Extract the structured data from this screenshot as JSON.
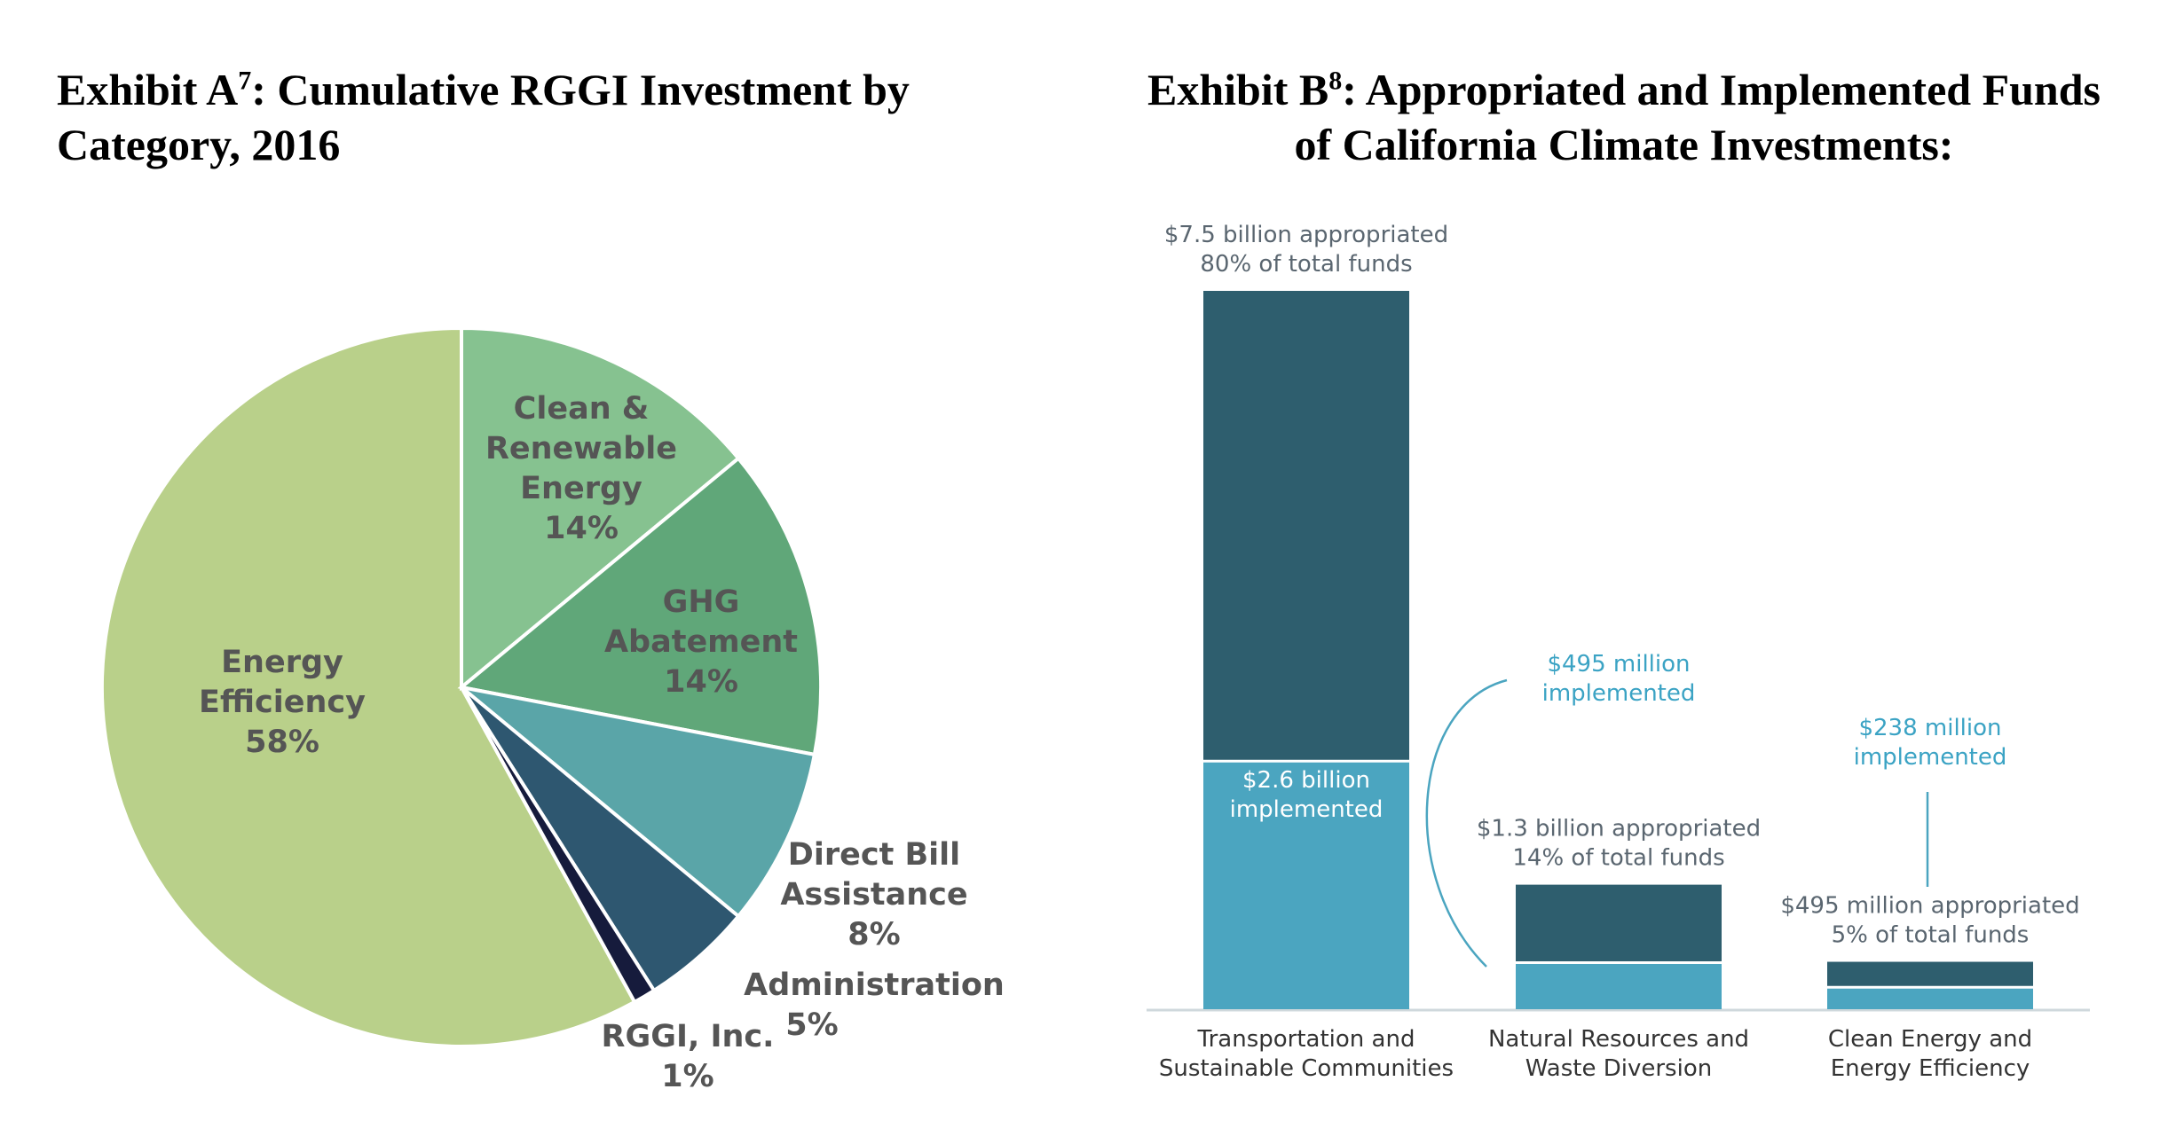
{
  "exhibit_a": {
    "title_prefix": "Exhibit A",
    "title_sup": "7",
    "title_rest": ": Cumulative RGGI Investment by Category, 2016"
  },
  "exhibit_b": {
    "title_prefix": "Exhibit B",
    "title_sup": "8",
    "title_rest": ": Appropriated and Implemented Funds of California Climate Investments:"
  },
  "chart_data": [
    {
      "type": "pie",
      "title": "Exhibit A7: Cumulative RGGI Investment by Category, 2016",
      "slices": [
        {
          "label": "Energy Efficiency",
          "value": 58,
          "value_label": "58%",
          "color": "#b9d08a"
        },
        {
          "label": "Clean & Renewable Energy",
          "value": 14,
          "value_label": "14%",
          "color": "#86c290"
        },
        {
          "label": "GHG Abatement",
          "value": 14,
          "value_label": "14%",
          "color": "#60a779"
        },
        {
          "label": "Direct Bill Assistance",
          "value": 8,
          "value_label": "8%",
          "color": "#5aa5a8"
        },
        {
          "label": "Administration",
          "value": 5,
          "value_label": "5%",
          "color": "#2e5770"
        },
        {
          "label": "RGGI, Inc.",
          "value": 1,
          "value_label": "1%",
          "color": "#161b3c"
        }
      ]
    },
    {
      "type": "bar",
      "title": "Exhibit B8: Appropriated and Implemented Funds of California Climate Investments:",
      "categories": [
        "Transportation and Sustainable Communities",
        "Natural Resources and Waste Diversion",
        "Clean Energy and Energy Efficiency"
      ],
      "category_lines": [
        [
          "Transportation and",
          "Sustainable Communities"
        ],
        [
          "Natural Resources and",
          "Waste Diversion"
        ],
        [
          "Clean Energy and",
          "Energy Efficiency"
        ]
      ],
      "units": "billion $",
      "series": [
        {
          "name": "appropriated",
          "values": [
            7.5,
            1.3,
            0.495
          ],
          "color": "#2e5e6e"
        },
        {
          "name": "implemented",
          "values": [
            2.6,
            0.495,
            0.238
          ],
          "color": "#4ba5c0"
        }
      ],
      "ylim": [
        0,
        7.5
      ],
      "appropriated_labels": [
        [
          "$7.5 billion appropriated",
          "80% of total funds"
        ],
        [
          "$1.3 billion appropriated",
          "14% of total funds"
        ],
        [
          "$495 million appropriated",
          "5% of total funds"
        ]
      ],
      "implemented_labels": [
        [
          "$2.6 billion",
          "implemented"
        ],
        [
          "$495 million",
          "implemented"
        ],
        [
          "$238 million",
          "implemented"
        ]
      ]
    }
  ]
}
